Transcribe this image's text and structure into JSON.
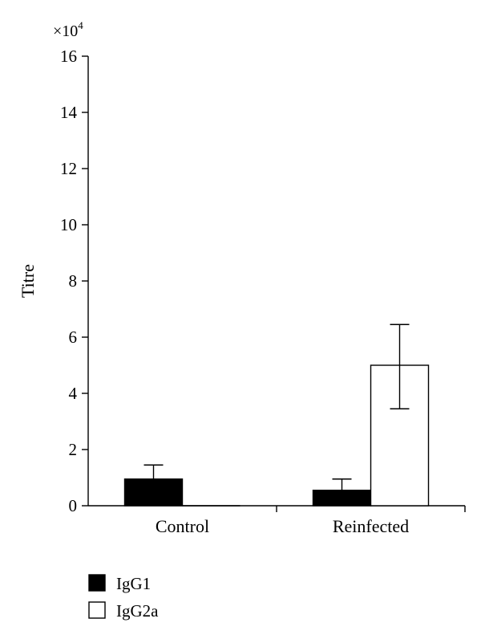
{
  "chart_data": {
    "type": "bar",
    "ylabel": "Titre",
    "y_multiplier": {
      "base": "×10",
      "exponent": "4"
    },
    "ylim": [
      0,
      16
    ],
    "yticks": [
      "0",
      "2",
      "4",
      "6",
      "8",
      "10",
      "12",
      "14",
      "16"
    ],
    "categories": [
      "Control",
      "Reinfected"
    ],
    "series": [
      {
        "name": "IgG1",
        "fill": "#000000",
        "values": [
          0.95,
          0.55
        ],
        "error_upper": [
          1.45,
          0.95
        ]
      },
      {
        "name": "IgG2a",
        "fill": "#ffffff",
        "values": [
          0.0,
          5.0
        ],
        "error_upper": [
          0.0,
          6.45
        ],
        "error_lower": [
          0.0,
          3.45
        ]
      }
    ],
    "legend_position": "bottom-left",
    "grid": false
  }
}
